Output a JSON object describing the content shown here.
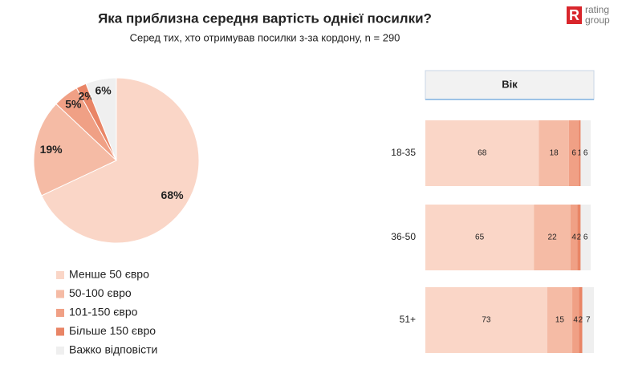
{
  "header": {
    "title": "Яка приблизна середня вартість однієї посилки?",
    "subtitle": "Серед тих, хто отримував посилки з-за кордону, n = 290",
    "logo": {
      "mark": "R",
      "line1": "rating",
      "line2": "group"
    }
  },
  "chart_data": [
    {
      "type": "pie",
      "categories": [
        "Менше 50 євро",
        "50-100 євро",
        "101-150 євро",
        "Більше 150 євро",
        "Важко відповісти"
      ],
      "values": [
        68,
        19,
        5,
        2,
        6
      ],
      "value_labels": [
        "68%",
        "19%",
        "5%",
        "2%",
        "6%"
      ],
      "colors": [
        "#fad6c7",
        "#f5bba5",
        "#f0a085",
        "#e98566",
        "#efefef"
      ],
      "legend": "bottom-left"
    },
    {
      "type": "bar",
      "orientation": "horizontal",
      "stacked": true,
      "header": "Вік",
      "categories": [
        "18-35",
        "36-50",
        "51+"
      ],
      "xlim": [
        0,
        100
      ],
      "series": [
        {
          "color": "#fad6c7",
          "values": [
            68,
            65,
            73
          ]
        },
        {
          "color": "#f5bba5",
          "values": [
            18,
            22,
            15
          ]
        },
        {
          "color": "#f0a085",
          "values": [
            6,
            4,
            4
          ]
        },
        {
          "color": "#e98566",
          "values": [
            1,
            2,
            2
          ]
        },
        {
          "color": "#efefef",
          "values": [
            6,
            6,
            7
          ]
        }
      ]
    }
  ]
}
